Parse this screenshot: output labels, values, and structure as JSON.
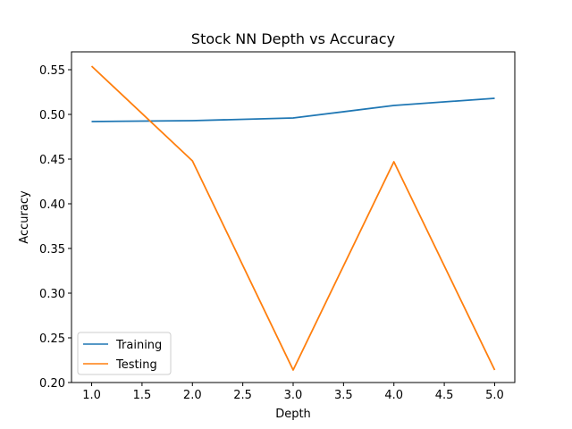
{
  "chart_data": {
    "type": "line",
    "title": "Stock NN Depth vs Accuracy",
    "xlabel": "Depth",
    "ylabel": "Accuracy",
    "xlim": [
      0.8,
      5.2
    ],
    "ylim": [
      0.2,
      0.57
    ],
    "xticks": [
      "1.0",
      "1.5",
      "2.0",
      "2.5",
      "3.0",
      "3.5",
      "4.0",
      "4.5",
      "5.0"
    ],
    "yticks": [
      "0.20",
      "0.25",
      "0.30",
      "0.35",
      "0.40",
      "0.45",
      "0.50",
      "0.55"
    ],
    "x": [
      1,
      2,
      3,
      4,
      5
    ],
    "series": [
      {
        "name": "Training",
        "color": "#1f77b4",
        "values": [
          0.492,
          0.493,
          0.496,
          0.51,
          0.518
        ]
      },
      {
        "name": "Testing",
        "color": "#ff7f0e",
        "values": [
          0.554,
          0.448,
          0.214,
          0.447,
          0.214
        ]
      }
    ],
    "grid": false,
    "legend_position": "lower-left"
  }
}
